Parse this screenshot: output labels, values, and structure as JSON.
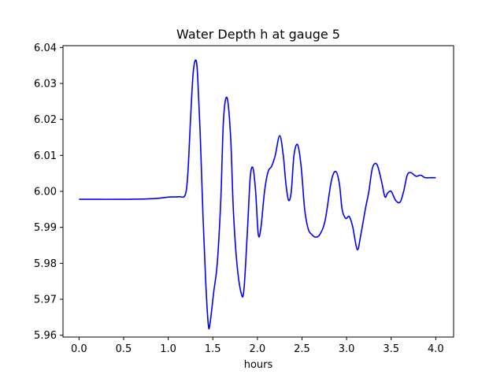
{
  "chart_data": {
    "type": "line",
    "title": "Water Depth h at gauge 5",
    "xlabel": "hours",
    "ylabel": "",
    "xlim": [
      -0.18,
      4.2
    ],
    "ylim": [
      5.9595,
      6.0405
    ],
    "xticks": [
      0.0,
      0.5,
      1.0,
      1.5,
      2.0,
      2.5,
      3.0,
      3.5,
      4.0
    ],
    "xtick_labels": [
      "0.0",
      "0.5",
      "1.0",
      "1.5",
      "2.0",
      "2.5",
      "3.0",
      "3.5",
      "4.0"
    ],
    "yticks": [
      5.96,
      5.97,
      5.98,
      5.99,
      6.0,
      6.01,
      6.02,
      6.03,
      6.04
    ],
    "ytick_labels": [
      "5.96",
      "5.97",
      "5.98",
      "5.99",
      "6.00",
      "6.01",
      "6.02",
      "6.03",
      "6.04"
    ],
    "grid": false,
    "legend": "none",
    "color": "#0000ff",
    "series": [
      {
        "x": [
          0.0,
          0.5,
          0.85,
          1.0,
          1.12,
          1.19,
          1.22,
          1.25,
          1.28,
          1.31,
          1.33,
          1.36,
          1.39,
          1.42,
          1.45,
          1.47,
          1.51,
          1.55,
          1.59,
          1.62,
          1.66,
          1.7,
          1.73,
          1.77,
          1.82,
          1.85,
          1.89,
          1.92,
          1.95,
          1.98,
          2.01,
          2.04,
          2.08,
          2.12,
          2.16,
          2.2,
          2.25,
          2.29,
          2.32,
          2.35,
          2.38,
          2.41,
          2.45,
          2.49,
          2.53,
          2.57,
          2.61,
          2.65,
          2.7,
          2.76,
          2.83,
          2.88,
          2.92,
          2.95,
          2.99,
          3.03,
          3.07,
          3.12,
          3.16,
          3.21,
          3.25,
          3.29,
          3.34,
          3.39,
          3.43,
          3.46,
          3.5,
          3.55,
          3.6,
          3.64,
          3.68,
          3.72,
          3.78,
          3.83,
          3.88,
          3.94,
          4.0
        ],
        "y": [
          5.9978,
          5.9978,
          5.998,
          5.9984,
          5.9985,
          5.999,
          6.005,
          6.02,
          6.033,
          6.0365,
          6.032,
          6.015,
          5.993,
          5.975,
          5.9628,
          5.9635,
          5.972,
          5.98,
          5.998,
          6.02,
          6.026,
          6.015,
          5.995,
          5.98,
          5.9715,
          5.973,
          5.99,
          6.004,
          6.0065,
          6.0,
          5.988,
          5.99,
          6.0,
          6.0055,
          6.007,
          6.01,
          6.0155,
          6.01,
          6.002,
          5.9975,
          6.0,
          6.01,
          6.013,
          6.007,
          5.995,
          5.9895,
          5.988,
          5.9873,
          5.988,
          5.992,
          6.003,
          6.0055,
          6.002,
          5.995,
          5.9925,
          5.993,
          5.99,
          5.9838,
          5.988,
          5.995,
          6.0,
          6.0065,
          6.0075,
          6.003,
          5.9985,
          5.9995,
          6.0,
          5.9975,
          5.997,
          6.0,
          6.0045,
          6.0052,
          6.0042,
          6.0045,
          6.0038,
          6.0038,
          6.0038
        ]
      }
    ]
  }
}
